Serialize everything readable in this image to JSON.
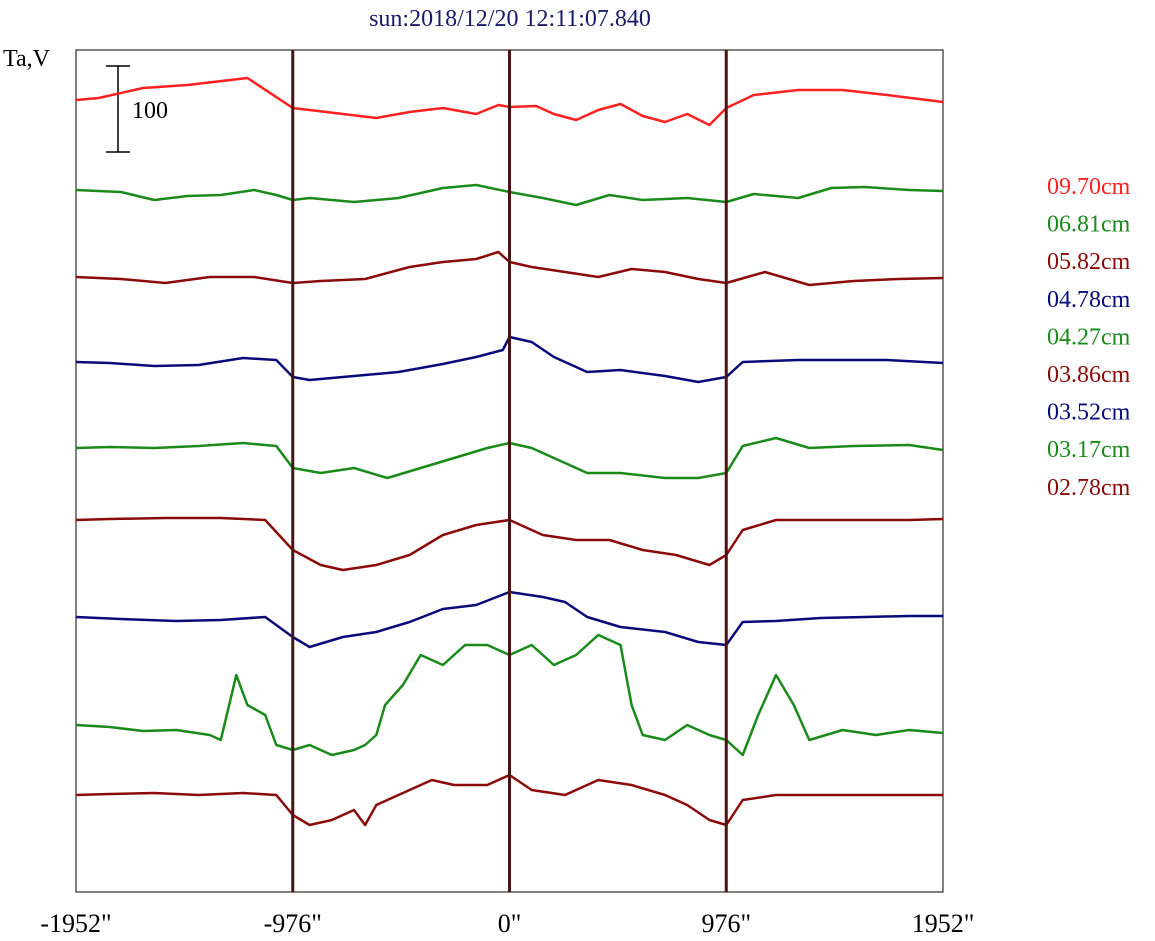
{
  "chart_data": {
    "type": "line",
    "title": "sun:2018/12/20 12:11:07.840",
    "ylabel": "Ta,V",
    "scale_bar_label": "100",
    "x_tick_labels": [
      "-1952\"",
      "-976\"",
      "0\"",
      "976\"",
      "1952\""
    ],
    "x_ticks": [
      -1952,
      -976,
      0,
      976,
      1952
    ],
    "xlim": [
      -1952,
      1952
    ],
    "vertical_markers": [
      -976,
      0,
      976
    ],
    "grid": false,
    "legend_position": "right",
    "series": [
      {
        "name": "09.70cm",
        "color": "#ff2020",
        "offset": 100,
        "points": [
          [
            -1952,
            0
          ],
          [
            -1850,
            2
          ],
          [
            -1650,
            12
          ],
          [
            -1450,
            15
          ],
          [
            -1180,
            22
          ],
          [
            -976,
            -8
          ],
          [
            -900,
            -10
          ],
          [
            -750,
            -14
          ],
          [
            -600,
            -18
          ],
          [
            -450,
            -12
          ],
          [
            -300,
            -8
          ],
          [
            -150,
            -14
          ],
          [
            -50,
            -5
          ],
          [
            0,
            -7
          ],
          [
            120,
            -6
          ],
          [
            200,
            -14
          ],
          [
            300,
            -20
          ],
          [
            400,
            -10
          ],
          [
            500,
            -4
          ],
          [
            600,
            -16
          ],
          [
            700,
            -22
          ],
          [
            800,
            -14
          ],
          [
            900,
            -25
          ],
          [
            976,
            -8
          ],
          [
            1100,
            5
          ],
          [
            1300,
            10
          ],
          [
            1500,
            10
          ],
          [
            1700,
            5
          ],
          [
            1952,
            -2
          ]
        ]
      },
      {
        "name": "06.81cm",
        "color": "#1a8a1a",
        "offset": 190,
        "points": [
          [
            -1952,
            0
          ],
          [
            -1750,
            -2
          ],
          [
            -1600,
            -10
          ],
          [
            -1450,
            -6
          ],
          [
            -1300,
            -5
          ],
          [
            -1150,
            0
          ],
          [
            -1050,
            -5
          ],
          [
            -976,
            -10
          ],
          [
            -900,
            -8
          ],
          [
            -700,
            -12
          ],
          [
            -500,
            -8
          ],
          [
            -300,
            2
          ],
          [
            -150,
            5
          ],
          [
            0,
            -2
          ],
          [
            150,
            -8
          ],
          [
            300,
            -15
          ],
          [
            450,
            -5
          ],
          [
            600,
            -10
          ],
          [
            800,
            -8
          ],
          [
            976,
            -12
          ],
          [
            1100,
            -4
          ],
          [
            1300,
            -8
          ],
          [
            1450,
            2
          ],
          [
            1600,
            3
          ],
          [
            1800,
            0
          ],
          [
            1952,
            -1
          ]
        ]
      },
      {
        "name": "05.82cm",
        "color": "#8b0a0a",
        "offset": 277,
        "points": [
          [
            -1952,
            0
          ],
          [
            -1750,
            -2
          ],
          [
            -1550,
            -6
          ],
          [
            -1350,
            0
          ],
          [
            -1150,
            0
          ],
          [
            -976,
            -6
          ],
          [
            -850,
            -4
          ],
          [
            -650,
            -2
          ],
          [
            -450,
            10
          ],
          [
            -300,
            15
          ],
          [
            -150,
            18
          ],
          [
            -50,
            25
          ],
          [
            0,
            15
          ],
          [
            100,
            10
          ],
          [
            250,
            5
          ],
          [
            400,
            0
          ],
          [
            550,
            8
          ],
          [
            700,
            5
          ],
          [
            850,
            -2
          ],
          [
            976,
            -6
          ],
          [
            1150,
            5
          ],
          [
            1350,
            -8
          ],
          [
            1550,
            -4
          ],
          [
            1750,
            -2
          ],
          [
            1952,
            -1
          ]
        ]
      },
      {
        "name": "04.78cm",
        "color": "#0a0a7a",
        "offset": 362,
        "points": [
          [
            -1952,
            0
          ],
          [
            -1800,
            -1
          ],
          [
            -1600,
            -4
          ],
          [
            -1400,
            -3
          ],
          [
            -1200,
            4
          ],
          [
            -1050,
            2
          ],
          [
            -976,
            -15
          ],
          [
            -900,
            -18
          ],
          [
            -700,
            -14
          ],
          [
            -500,
            -10
          ],
          [
            -300,
            -2
          ],
          [
            -150,
            5
          ],
          [
            -30,
            12
          ],
          [
            0,
            25
          ],
          [
            100,
            20
          ],
          [
            200,
            5
          ],
          [
            350,
            -10
          ],
          [
            500,
            -8
          ],
          [
            700,
            -14
          ],
          [
            850,
            -20
          ],
          [
            976,
            -15
          ],
          [
            1050,
            0
          ],
          [
            1300,
            2
          ],
          [
            1500,
            2
          ],
          [
            1700,
            2
          ],
          [
            1952,
            -1
          ]
        ]
      },
      {
        "name": "04.27cm",
        "color": "#1a8a1a",
        "offset": 448,
        "points": [
          [
            -1952,
            0
          ],
          [
            -1800,
            1
          ],
          [
            -1600,
            0
          ],
          [
            -1400,
            2
          ],
          [
            -1200,
            5
          ],
          [
            -1050,
            2
          ],
          [
            -976,
            -20
          ],
          [
            -850,
            -25
          ],
          [
            -700,
            -20
          ],
          [
            -550,
            -30
          ],
          [
            -400,
            -20
          ],
          [
            -250,
            -10
          ],
          [
            -100,
            0
          ],
          [
            0,
            5
          ],
          [
            100,
            0
          ],
          [
            200,
            -10
          ],
          [
            350,
            -25
          ],
          [
            500,
            -25
          ],
          [
            700,
            -30
          ],
          [
            850,
            -30
          ],
          [
            976,
            -25
          ],
          [
            1050,
            2
          ],
          [
            1200,
            10
          ],
          [
            1350,
            0
          ],
          [
            1550,
            2
          ],
          [
            1800,
            3
          ],
          [
            1952,
            -2
          ]
        ]
      },
      {
        "name": "03.86cm",
        "color": "#8b0a0a",
        "offset": 520,
        "points": [
          [
            -1952,
            0
          ],
          [
            -1800,
            1
          ],
          [
            -1550,
            2
          ],
          [
            -1300,
            2
          ],
          [
            -1100,
            0
          ],
          [
            -976,
            -30
          ],
          [
            -850,
            -45
          ],
          [
            -750,
            -50
          ],
          [
            -600,
            -45
          ],
          [
            -450,
            -35
          ],
          [
            -300,
            -15
          ],
          [
            -150,
            -5
          ],
          [
            0,
            0
          ],
          [
            150,
            -15
          ],
          [
            300,
            -20
          ],
          [
            450,
            -20
          ],
          [
            600,
            -30
          ],
          [
            750,
            -35
          ],
          [
            900,
            -45
          ],
          [
            976,
            -35
          ],
          [
            1050,
            -10
          ],
          [
            1200,
            0
          ],
          [
            1400,
            0
          ],
          [
            1600,
            0
          ],
          [
            1800,
            0
          ],
          [
            1952,
            1
          ]
        ]
      },
      {
        "name": "03.52cm",
        "color": "#0a0a7a",
        "offset": 617,
        "points": [
          [
            -1952,
            0
          ],
          [
            -1750,
            -2
          ],
          [
            -1500,
            -4
          ],
          [
            -1300,
            -3
          ],
          [
            -1100,
            0
          ],
          [
            -976,
            -20
          ],
          [
            -900,
            -30
          ],
          [
            -750,
            -20
          ],
          [
            -600,
            -15
          ],
          [
            -450,
            -5
          ],
          [
            -300,
            8
          ],
          [
            -150,
            12
          ],
          [
            0,
            25
          ],
          [
            150,
            20
          ],
          [
            250,
            15
          ],
          [
            350,
            0
          ],
          [
            500,
            -10
          ],
          [
            700,
            -15
          ],
          [
            850,
            -25
          ],
          [
            976,
            -28
          ],
          [
            1050,
            -5
          ],
          [
            1200,
            -4
          ],
          [
            1400,
            -1
          ],
          [
            1600,
            0
          ],
          [
            1800,
            1
          ],
          [
            1952,
            1
          ]
        ]
      },
      {
        "name": "03.17cm",
        "color": "#1a8a1a",
        "offset": 725,
        "points": [
          [
            -1952,
            0
          ],
          [
            -1800,
            -2
          ],
          [
            -1650,
            -6
          ],
          [
            -1500,
            -5
          ],
          [
            -1350,
            -10
          ],
          [
            -1300,
            -15
          ],
          [
            -1230,
            50
          ],
          [
            -1180,
            20
          ],
          [
            -1100,
            10
          ],
          [
            -1050,
            -20
          ],
          [
            -976,
            -25
          ],
          [
            -900,
            -20
          ],
          [
            -800,
            -30
          ],
          [
            -700,
            -25
          ],
          [
            -650,
            -20
          ],
          [
            -600,
            -10
          ],
          [
            -560,
            20
          ],
          [
            -480,
            40
          ],
          [
            -400,
            70
          ],
          [
            -300,
            60
          ],
          [
            -200,
            80
          ],
          [
            -100,
            80
          ],
          [
            0,
            70
          ],
          [
            100,
            80
          ],
          [
            200,
            60
          ],
          [
            300,
            70
          ],
          [
            400,
            90
          ],
          [
            500,
            80
          ],
          [
            550,
            20
          ],
          [
            600,
            -10
          ],
          [
            700,
            -15
          ],
          [
            800,
            0
          ],
          [
            900,
            -10
          ],
          [
            976,
            -15
          ],
          [
            1050,
            -30
          ],
          [
            1120,
            10
          ],
          [
            1200,
            50
          ],
          [
            1280,
            20
          ],
          [
            1350,
            -15
          ],
          [
            1500,
            -5
          ],
          [
            1650,
            -10
          ],
          [
            1800,
            -5
          ],
          [
            1952,
            -8
          ]
        ]
      },
      {
        "name": "02.78cm",
        "color": "#8b0a0a",
        "offset": 795,
        "points": [
          [
            -1952,
            0
          ],
          [
            -1800,
            1
          ],
          [
            -1600,
            2
          ],
          [
            -1400,
            0
          ],
          [
            -1200,
            2
          ],
          [
            -1050,
            0
          ],
          [
            -976,
            -20
          ],
          [
            -900,
            -30
          ],
          [
            -800,
            -25
          ],
          [
            -700,
            -15
          ],
          [
            -650,
            -30
          ],
          [
            -600,
            -10
          ],
          [
            -500,
            0
          ],
          [
            -350,
            15
          ],
          [
            -250,
            10
          ],
          [
            -100,
            10
          ],
          [
            0,
            20
          ],
          [
            100,
            5
          ],
          [
            250,
            0
          ],
          [
            400,
            15
          ],
          [
            550,
            10
          ],
          [
            700,
            0
          ],
          [
            800,
            -10
          ],
          [
            900,
            -25
          ],
          [
            976,
            -30
          ],
          [
            1050,
            -5
          ],
          [
            1200,
            0
          ],
          [
            1400,
            0
          ],
          [
            1600,
            0
          ],
          [
            1800,
            0
          ],
          [
            1952,
            0
          ]
        ]
      }
    ]
  }
}
